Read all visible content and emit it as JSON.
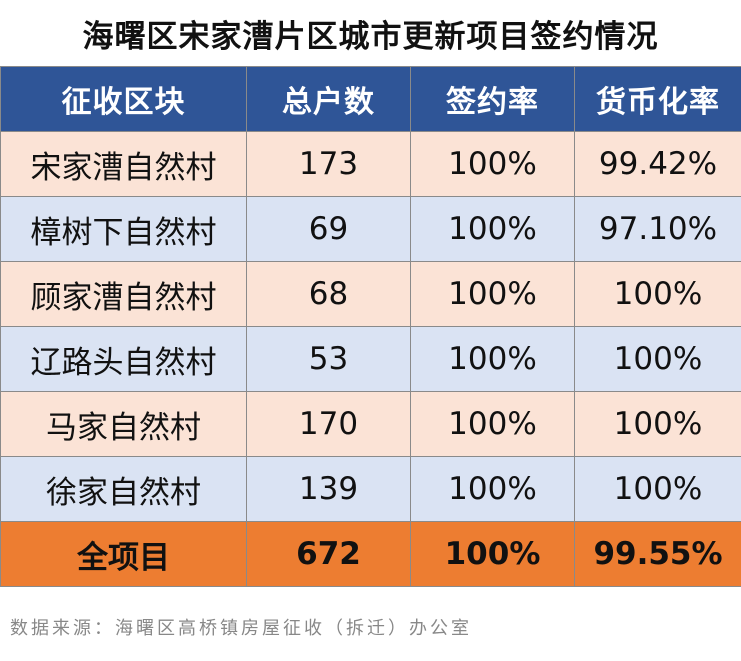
{
  "title": "海曙区宋家漕片区城市更新项目签约情况",
  "columns": [
    "征收区块",
    "总户数",
    "签约率",
    "货币化率"
  ],
  "rows": [
    {
      "block": "宋家漕自然村",
      "households": "173",
      "signing_rate": "100%",
      "monetization_rate": "99.42%",
      "color": "#fbe3d6"
    },
    {
      "block": "樟树下自然村",
      "households": "69",
      "signing_rate": "100%",
      "monetization_rate": "97.10%",
      "color": "#dae3f3"
    },
    {
      "block": "顾家漕自然村",
      "households": "68",
      "signing_rate": "100%",
      "monetization_rate": "100%",
      "color": "#fbe3d6"
    },
    {
      "block": "辽路头自然村",
      "households": "53",
      "signing_rate": "100%",
      "monetization_rate": "100%",
      "color": "#dae3f3"
    },
    {
      "block": "马家自然村",
      "households": "170",
      "signing_rate": "100%",
      "monetization_rate": "100%",
      "color": "#fbe3d6"
    },
    {
      "block": "徐家自然村",
      "households": "139",
      "signing_rate": "100%",
      "monetization_rate": "100%",
      "color": "#dae3f3"
    }
  ],
  "total": {
    "block": "全项目",
    "households": "672",
    "signing_rate": "100%",
    "monetization_rate": "99.55%"
  },
  "source": "数据来源：海曙区高桥镇房屋征收（拆迁）办公室",
  "colors": {
    "header_bg": "#2f5597",
    "total_bg": "#ed7d31",
    "row_peach": "#fbe3d6",
    "row_blue": "#dae3f3"
  }
}
